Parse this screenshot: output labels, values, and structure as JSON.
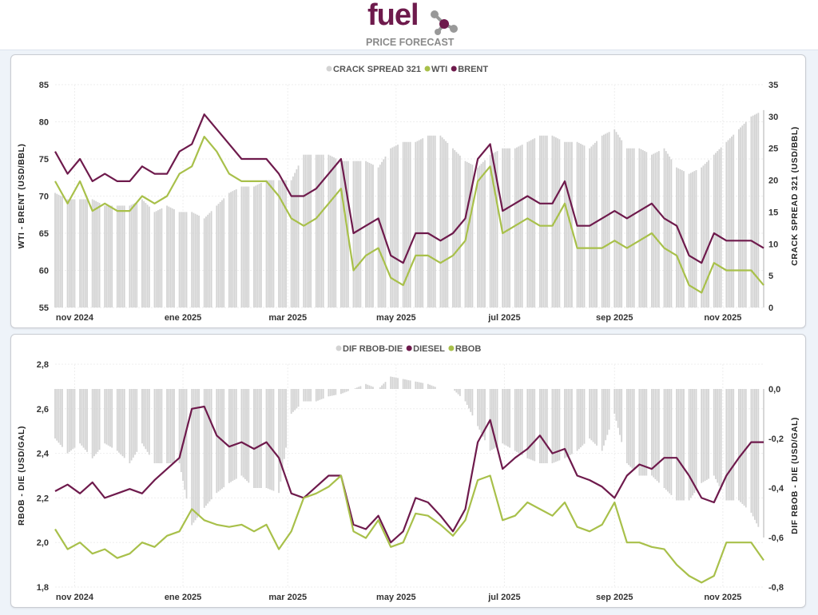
{
  "header": {
    "logo_word": "fuel",
    "logo_sub": "PRICE FORECAST"
  },
  "colors": {
    "bars": "#d3d3d3",
    "wti": "#a8c04a",
    "brent": "#6e1a4c",
    "diesel": "#6e1a4c",
    "rbob": "#a8c04a"
  },
  "chart_data": [
    {
      "type": "line+bar",
      "legend": [
        "CRACK SPREAD 321",
        "WTI",
        "BRENT"
      ],
      "legend_position": "top-center",
      "ylabel": "WTI - BRENT (USD/BBL)",
      "y2label": "CRACK SPREAD 321 (USD/BBL)",
      "ylim": [
        55,
        85
      ],
      "yticks": [
        55,
        60,
        65,
        70,
        75,
        80,
        85
      ],
      "y2lim": [
        0,
        35
      ],
      "y2ticks": [
        0,
        5,
        10,
        15,
        20,
        25,
        30,
        35
      ],
      "xlim": [
        "2024-10-21",
        "2025-11-24"
      ],
      "xticks": [
        {
          "date": "2024-11-01",
          "label": "nov 2024"
        },
        {
          "date": "2025-01-01",
          "label": "ene 2025"
        },
        {
          "date": "2025-03-01",
          "label": "mar 2025"
        },
        {
          "date": "2025-05-01",
          "label": "may 2025"
        },
        {
          "date": "2025-07-01",
          "label": "jul 2025"
        },
        {
          "date": "2025-09-01",
          "label": "sep 2025"
        },
        {
          "date": "2025-11-01",
          "label": "nov 2025"
        }
      ],
      "bar_series": {
        "name": "CRACK SPREAD 321",
        "axis": "right",
        "values": [
          18,
          17,
          17,
          17,
          16,
          16,
          16,
          17,
          15,
          16,
          15,
          15,
          14,
          16,
          18,
          19,
          19,
          20,
          20,
          20,
          24,
          24,
          24,
          23,
          23,
          23,
          22,
          25,
          26,
          26,
          27,
          27,
          25,
          23,
          22,
          24,
          25,
          25,
          26,
          27,
          27,
          26,
          26,
          25,
          27,
          28,
          25,
          25,
          24,
          25,
          22,
          21,
          22,
          24,
          26,
          28,
          30,
          31
        ]
      },
      "series": [
        {
          "name": "WTI",
          "values": [
            72,
            69,
            72,
            68,
            69,
            68,
            68,
            70,
            69,
            70,
            73,
            74,
            78,
            76,
            73,
            72,
            72,
            72,
            70,
            67,
            66,
            67,
            69,
            71,
            60,
            62,
            63,
            59,
            58,
            62,
            62,
            61,
            62,
            64,
            72,
            74,
            65,
            66,
            67,
            66,
            66,
            69,
            63,
            63,
            63,
            64,
            63,
            64,
            65,
            63,
            62,
            58,
            57,
            61,
            60,
            60,
            60,
            58
          ]
        },
        {
          "name": "BRENT",
          "values": [
            76,
            73,
            75,
            72,
            73,
            72,
            72,
            74,
            73,
            73,
            76,
            77,
            81,
            79,
            77,
            75,
            75,
            75,
            73,
            70,
            70,
            71,
            73,
            75,
            65,
            66,
            67,
            62,
            61,
            65,
            65,
            64,
            65,
            67,
            75,
            77,
            68,
            69,
            70,
            69,
            69,
            72,
            66,
            66,
            67,
            68,
            67,
            68,
            69,
            67,
            66,
            62,
            61,
            65,
            64,
            64,
            64,
            63
          ]
        }
      ]
    },
    {
      "type": "line+bar",
      "legend": [
        "DIF RBOB-DIE",
        "DIESEL",
        "RBOB"
      ],
      "legend_position": "top-center",
      "ylabel": "RBOB - DIE (USD/GAL)",
      "y2label": "DIF RBOB - DIE (USD/GAL)",
      "ylim": [
        1.8,
        2.8
      ],
      "yticks": [
        "1,8",
        "2,0",
        "2,2",
        "2,4",
        "2,6",
        "2,8"
      ],
      "y2lim": [
        -0.8,
        0.1
      ],
      "y2ticks": [
        "-0,8",
        "-0,6",
        "-0,4",
        "-0,2",
        "0,0"
      ],
      "xlim": [
        "2024-10-21",
        "2025-11-24"
      ],
      "xticks": [
        {
          "date": "2024-11-01",
          "label": "nov 2024"
        },
        {
          "date": "2025-01-01",
          "label": "ene 2025"
        },
        {
          "date": "2025-03-01",
          "label": "mar 2025"
        },
        {
          "date": "2025-05-01",
          "label": "may 2025"
        },
        {
          "date": "2025-07-01",
          "label": "jul 2025"
        },
        {
          "date": "2025-09-01",
          "label": "sep 2025"
        },
        {
          "date": "2025-11-01",
          "label": "nov 2025"
        }
      ],
      "bar_series": {
        "name": "DIF RBOB-DIE",
        "axis": "right",
        "values": [
          -0.2,
          -0.26,
          -0.22,
          -0.28,
          -0.22,
          -0.25,
          -0.3,
          -0.22,
          -0.3,
          -0.3,
          -0.3,
          -0.55,
          -0.48,
          -0.42,
          -0.38,
          -0.35,
          -0.4,
          -0.4,
          -0.42,
          -0.1,
          -0.05,
          -0.05,
          -0.03,
          -0.02,
          0.0,
          0.02,
          0.0,
          0.05,
          0.04,
          0.03,
          0.02,
          0.0,
          0.0,
          -0.05,
          -0.15,
          -0.25,
          -0.22,
          -0.25,
          -0.28,
          -0.3,
          -0.3,
          -0.28,
          -0.25,
          -0.2,
          -0.25,
          -0.1,
          -0.3,
          -0.35,
          -0.35,
          -0.4,
          -0.45,
          -0.45,
          -0.38,
          -0.35,
          -0.45,
          -0.45,
          -0.5,
          -0.6
        ]
      },
      "series": [
        {
          "name": "DIESEL",
          "values": [
            2.23,
            2.26,
            2.22,
            2.27,
            2.2,
            2.22,
            2.24,
            2.22,
            2.28,
            2.33,
            2.38,
            2.6,
            2.61,
            2.48,
            2.43,
            2.45,
            2.42,
            2.45,
            2.38,
            2.22,
            2.2,
            2.25,
            2.3,
            2.3,
            2.08,
            2.06,
            2.12,
            2.0,
            2.05,
            2.2,
            2.18,
            2.12,
            2.05,
            2.15,
            2.45,
            2.55,
            2.33,
            2.38,
            2.42,
            2.48,
            2.4,
            2.42,
            2.3,
            2.28,
            2.25,
            2.2,
            2.3,
            2.35,
            2.33,
            2.38,
            2.38,
            2.3,
            2.2,
            2.18,
            2.3,
            2.38,
            2.45,
            2.45
          ]
        },
        {
          "name": "RBOB",
          "values": [
            2.06,
            1.97,
            2.0,
            1.95,
            1.97,
            1.93,
            1.95,
            2.0,
            1.98,
            2.03,
            2.05,
            2.15,
            2.1,
            2.08,
            2.07,
            2.08,
            2.05,
            2.08,
            1.97,
            2.05,
            2.2,
            2.22,
            2.25,
            2.3,
            2.05,
            2.02,
            2.1,
            1.98,
            2.0,
            2.13,
            2.12,
            2.08,
            2.03,
            2.1,
            2.28,
            2.3,
            2.1,
            2.12,
            2.18,
            2.15,
            2.12,
            2.18,
            2.07,
            2.05,
            2.08,
            2.18,
            2.0,
            2.0,
            1.98,
            1.97,
            1.9,
            1.85,
            1.82,
            1.85,
            2.0,
            2.0,
            2.0,
            1.92
          ]
        }
      ]
    }
  ]
}
